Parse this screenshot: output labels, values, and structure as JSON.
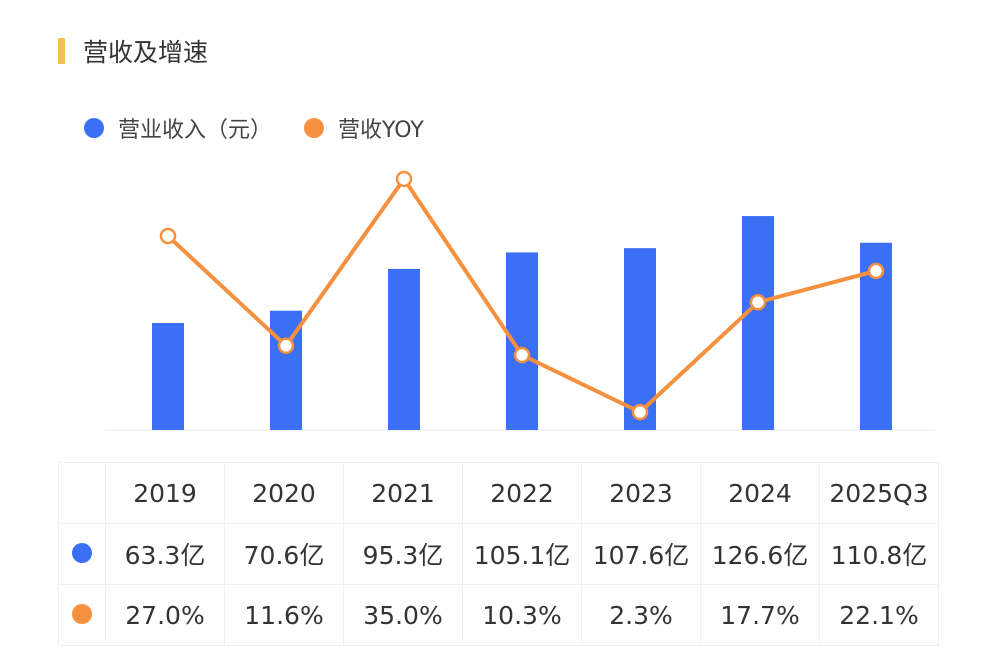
{
  "title": "营收及增速",
  "chart_data": {
    "type": "bar+line",
    "title": "营收及增速",
    "categories": [
      "2019",
      "2020",
      "2021",
      "2022",
      "2023",
      "2024",
      "2025Q3"
    ],
    "series": [
      {
        "name": "营业收入（元）",
        "type": "bar",
        "color": "#3b6ff5",
        "values": [
          63.3,
          70.6,
          95.3,
          105.1,
          107.6,
          126.6,
          110.8
        ],
        "labels": [
          "63.3亿",
          "70.6亿",
          "95.3亿",
          "105.1亿",
          "107.6亿",
          "126.6亿",
          "110.8亿"
        ]
      },
      {
        "name": "营收YOY",
        "type": "line",
        "color": "#f5913e",
        "values": [
          27.0,
          11.6,
          35.0,
          10.3,
          2.3,
          17.7,
          22.1
        ],
        "labels": [
          "27.0%",
          "11.6%",
          "35.0%",
          "10.3%",
          "2.3%",
          "17.7%",
          "22.1%"
        ]
      }
    ],
    "legend_position": "top-left",
    "grid": false
  }
}
